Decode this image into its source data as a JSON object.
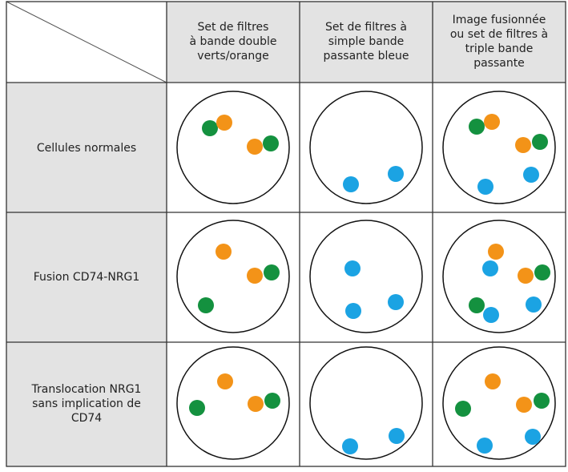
{
  "header": {
    "columns": [
      {
        "lines": [
          "Set de filtres",
          "à bande double",
          "verts/orange"
        ]
      },
      {
        "lines": [
          "Set de filtres à",
          "simple bande",
          "passante bleue"
        ]
      },
      {
        "lines": [
          "Image fusionnée",
          "ou set de filtres à",
          "triple bande",
          "passante"
        ]
      }
    ]
  },
  "rows": [
    {
      "lines": [
        "Cellules normales"
      ]
    },
    {
      "lines": [
        "Fusion CD74-NRG1"
      ]
    },
    {
      "lines": [
        "Translocation NRG1",
        "sans implication de",
        "CD74"
      ]
    }
  ]
}
